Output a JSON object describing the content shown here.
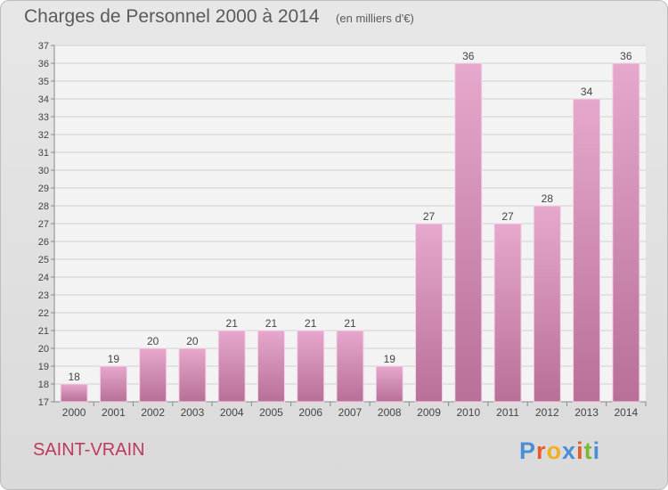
{
  "header": {
    "title": "Charges de Personnel 2000 à 2014",
    "subtitle": "(en milliers d'€)"
  },
  "footer": {
    "commune": "SAINT-VRAIN",
    "brand": "Proxiti"
  },
  "colors": {
    "bar_light": "#e6a8cc",
    "bar_dark": "#b86f98",
    "commune_text": "#c0395a",
    "brand_letters": [
      "#4a8fd6",
      "#e85a2a",
      "#f0b020",
      "#4a8fd6",
      "#e85a2a",
      "#7ab83a",
      "#4a8fd6"
    ]
  },
  "chart_data": {
    "type": "bar",
    "categories": [
      "2000",
      "2001",
      "2002",
      "2003",
      "2004",
      "2005",
      "2006",
      "2007",
      "2008",
      "2009",
      "2010",
      "2011",
      "2012",
      "2013",
      "2014"
    ],
    "values": [
      18,
      19,
      20,
      20,
      21,
      21,
      21,
      21,
      19,
      27,
      36,
      27,
      28,
      34,
      36
    ],
    "ylim": [
      17,
      37
    ],
    "yticks": [
      17,
      18,
      19,
      20,
      21,
      22,
      23,
      24,
      25,
      26,
      27,
      28,
      29,
      30,
      31,
      32,
      33,
      34,
      35,
      36,
      37
    ],
    "grid": true,
    "data_labels": true
  }
}
